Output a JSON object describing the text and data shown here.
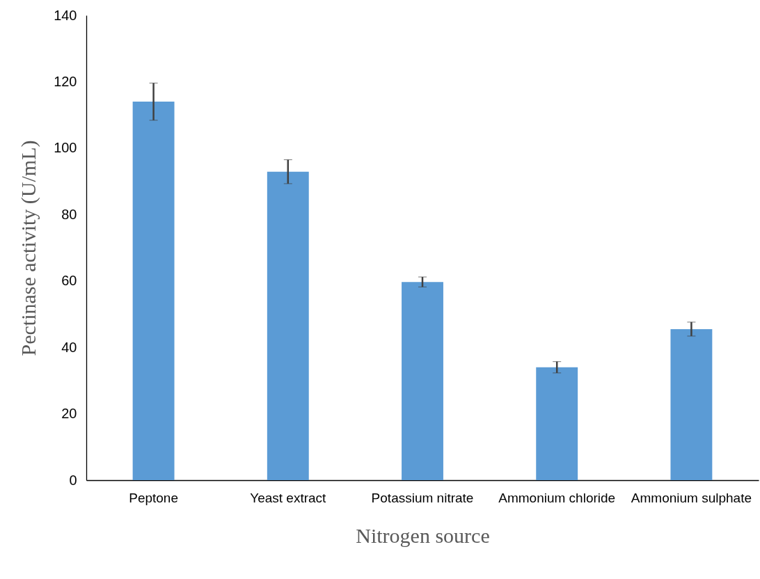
{
  "chart_data": {
    "type": "bar",
    "xlabel": "Nitrogen source",
    "ylabel": "Pectinase activity (U/mL)",
    "categories": [
      "Peptone",
      "Yeast extract",
      "Potassium nitrate",
      "Ammonium chloride",
      "Ammonium sulphate"
    ],
    "values": [
      114,
      92.9,
      59.7,
      34,
      45.5
    ],
    "errors": [
      5.6,
      3.6,
      1.5,
      1.7,
      2.1
    ],
    "color": "#5b9bd5",
    "ylim": [
      0,
      140
    ],
    "yticks": [
      0,
      20,
      40,
      60,
      80,
      100,
      120,
      140
    ],
    "grid": false
  }
}
